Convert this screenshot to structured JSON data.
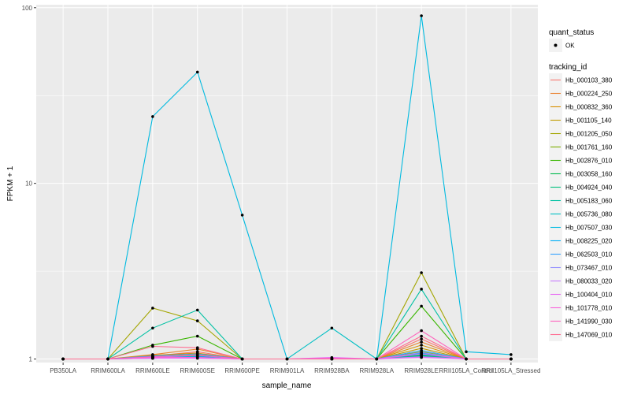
{
  "chart_data": {
    "type": "line",
    "xlabel": "sample_name",
    "ylabel": "FPKM + 1",
    "y_scale": "log10",
    "ylim": [
      0.955,
      104
    ],
    "y_ticks": [
      {
        "value": 1,
        "label": "1"
      },
      {
        "value": 10,
        "label": "10"
      },
      {
        "value": 100,
        "label": "100"
      }
    ],
    "categories": [
      "PB350LA",
      "RRIM600LA",
      "RRIM600LE",
      "RRIM600SE",
      "RRIM600PE",
      "RRIM901LA",
      "RRIM928BA",
      "RRIM928LA",
      "RRIM928LE",
      "RRII105LA_Control",
      "RRII105LA_Stressed"
    ],
    "legend_shape": {
      "title": "quant_status",
      "items": [
        "OK"
      ]
    },
    "legend_color_title": "tracking_id",
    "series": [
      {
        "name": "Hb_000103_380",
        "color": "#F8766D",
        "values": [
          1.0,
          1.0,
          1.04,
          1.1,
          1.0,
          1.0,
          1.0,
          1.0,
          1.3,
          1.0,
          1.0
        ]
      },
      {
        "name": "Hb_000224_250",
        "color": "#EA8331",
        "values": [
          1.0,
          1.0,
          1.06,
          1.14,
          1.0,
          1.0,
          1.0,
          1.0,
          1.25,
          1.0,
          1.0
        ]
      },
      {
        "name": "Hb_000832_360",
        "color": "#D89000",
        "values": [
          1.0,
          1.0,
          1.05,
          1.08,
          1.0,
          1.0,
          1.0,
          1.0,
          1.2,
          1.0,
          1.0
        ]
      },
      {
        "name": "Hb_001105_140",
        "color": "#C09B00",
        "values": [
          1.0,
          1.0,
          1.03,
          1.06,
          1.0,
          1.0,
          1.0,
          1.0,
          1.15,
          1.0,
          1.0
        ]
      },
      {
        "name": "Hb_001205_050",
        "color": "#A3A500",
        "values": [
          1.0,
          1.0,
          1.95,
          1.65,
          1.0,
          1.0,
          1.0,
          1.0,
          3.1,
          1.0,
          1.0
        ]
      },
      {
        "name": "Hb_001761_160",
        "color": "#7CAE00",
        "values": [
          1.0,
          1.0,
          1.02,
          1.04,
          1.0,
          1.0,
          1.0,
          1.0,
          1.1,
          1.0,
          1.0
        ]
      },
      {
        "name": "Hb_002876_010",
        "color": "#39B600",
        "values": [
          1.0,
          1.0,
          1.2,
          1.35,
          1.0,
          1.0,
          1.0,
          1.0,
          2.0,
          1.0,
          1.0
        ]
      },
      {
        "name": "Hb_003058_160",
        "color": "#00BB4E",
        "values": [
          1.0,
          1.0,
          1.02,
          1.03,
          1.0,
          1.0,
          1.0,
          1.0,
          1.05,
          1.0,
          1.0
        ]
      },
      {
        "name": "Hb_004924_040",
        "color": "#00BF7D",
        "values": [
          1.0,
          1.0,
          1.01,
          1.02,
          1.0,
          1.0,
          1.0,
          1.0,
          1.04,
          1.0,
          1.0
        ]
      },
      {
        "name": "Hb_005183_060",
        "color": "#00C1A3",
        "values": [
          1.0,
          1.0,
          1.5,
          1.9,
          1.0,
          1.0,
          1.0,
          1.0,
          2.5,
          1.0,
          1.0
        ]
      },
      {
        "name": "Hb_005736_080",
        "color": "#00BFC4",
        "values": [
          1.0,
          1.0,
          1.02,
          1.03,
          1.0,
          1.0,
          1.5,
          1.0,
          1.06,
          1.0,
          1.0
        ]
      },
      {
        "name": "Hb_007507_030",
        "color": "#00BAE0",
        "values": [
          1.0,
          1.0,
          24,
          43,
          6.6,
          1.0,
          1.0,
          1.0,
          90,
          1.1,
          1.06
        ]
      },
      {
        "name": "Hb_008225_020",
        "color": "#00B0F6",
        "values": [
          1.0,
          1.0,
          1.03,
          1.04,
          1.0,
          1.0,
          1.0,
          1.0,
          1.08,
          1.0,
          1.0
        ]
      },
      {
        "name": "Hb_062503_010",
        "color": "#35A2FF",
        "values": [
          1.0,
          1.0,
          1.04,
          1.07,
          1.0,
          1.0,
          1.0,
          1.0,
          1.12,
          1.0,
          1.0
        ]
      },
      {
        "name": "Hb_073467_010",
        "color": "#9590FF",
        "values": [
          1.0,
          1.0,
          1.02,
          1.05,
          1.0,
          1.0,
          1.0,
          1.0,
          1.09,
          1.0,
          1.0
        ]
      },
      {
        "name": "Hb_080033_020",
        "color": "#C77CFF",
        "values": [
          1.0,
          1.0,
          1.01,
          1.02,
          1.0,
          1.0,
          1.0,
          1.0,
          1.03,
          1.0,
          1.0
        ]
      },
      {
        "name": "Hb_100404_010",
        "color": "#E76BF3",
        "values": [
          1.0,
          1.0,
          1.01,
          1.01,
          1.0,
          1.0,
          1.02,
          1.0,
          1.02,
          1.0,
          1.0
        ]
      },
      {
        "name": "Hb_101778_010",
        "color": "#FA62DB",
        "values": [
          1.0,
          1.0,
          1.02,
          1.02,
          1.0,
          1.0,
          1.01,
          1.0,
          1.07,
          1.0,
          1.0
        ]
      },
      {
        "name": "Hb_141990_030",
        "color": "#FF62BC",
        "values": [
          1.0,
          1.0,
          1.03,
          1.05,
          1.0,
          1.0,
          1.0,
          1.0,
          1.45,
          1.0,
          1.0
        ]
      },
      {
        "name": "Hb_147069_010",
        "color": "#FF6C91",
        "values": [
          1.0,
          1.0,
          1.18,
          1.16,
          1.0,
          1.0,
          1.0,
          1.0,
          1.35,
          1.0,
          1.0
        ]
      }
    ]
  },
  "colors": {
    "panel_background": "#EBEBEB",
    "grid_major": "#FFFFFF",
    "point": "#000000"
  }
}
